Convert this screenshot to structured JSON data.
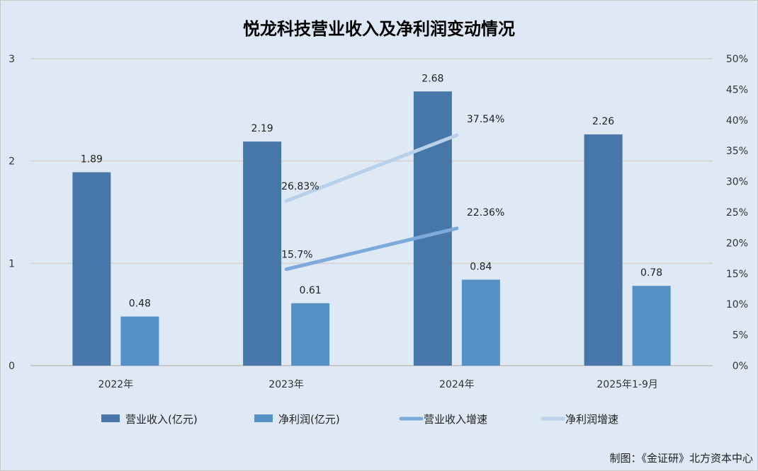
{
  "chart_data": {
    "type": "bar",
    "title": "悦龙科技营业收入及净利润变动情况",
    "categories": [
      "2022年",
      "2023年",
      "2024年",
      "2025年1-9月"
    ],
    "series": [
      {
        "name": "营业收入(亿元)",
        "kind": "bar",
        "axis": "left",
        "color": "#4677a8",
        "values": [
          1.89,
          2.19,
          2.68,
          2.26
        ],
        "labels": [
          "1.89",
          "2.19",
          "2.68",
          "2.26"
        ]
      },
      {
        "name": "净利润(亿元)",
        "kind": "bar",
        "axis": "left",
        "color": "#5591c7",
        "values": [
          0.48,
          0.61,
          0.84,
          0.78
        ],
        "labels": [
          "0.48",
          "0.61",
          "0.84",
          "0.78"
        ]
      },
      {
        "name": "营业收入增速",
        "kind": "line",
        "axis": "right",
        "color": "#7eaadb",
        "values": [
          null,
          15.7,
          22.36,
          null
        ],
        "labels": [
          null,
          "15.7%",
          "22.36%",
          null
        ]
      },
      {
        "name": "净利润增速",
        "kind": "line",
        "axis": "right",
        "color": "#b9d0ea",
        "values": [
          null,
          26.83,
          37.54,
          null
        ],
        "labels": [
          null,
          "26.83%",
          "37.54%",
          null
        ]
      }
    ],
    "left_axis": {
      "ylim": [
        0,
        3
      ],
      "ticks": [
        "0",
        "1",
        "2",
        "3"
      ]
    },
    "right_axis": {
      "ylim": [
        0,
        50
      ],
      "ticks": [
        "0%",
        "5%",
        "10%",
        "15%",
        "20%",
        "25%",
        "30%",
        "35%",
        "40%",
        "45%",
        "50%"
      ]
    },
    "grid": true,
    "legend": "bottom",
    "credit": "制图：《金证研》北方资本中心"
  }
}
